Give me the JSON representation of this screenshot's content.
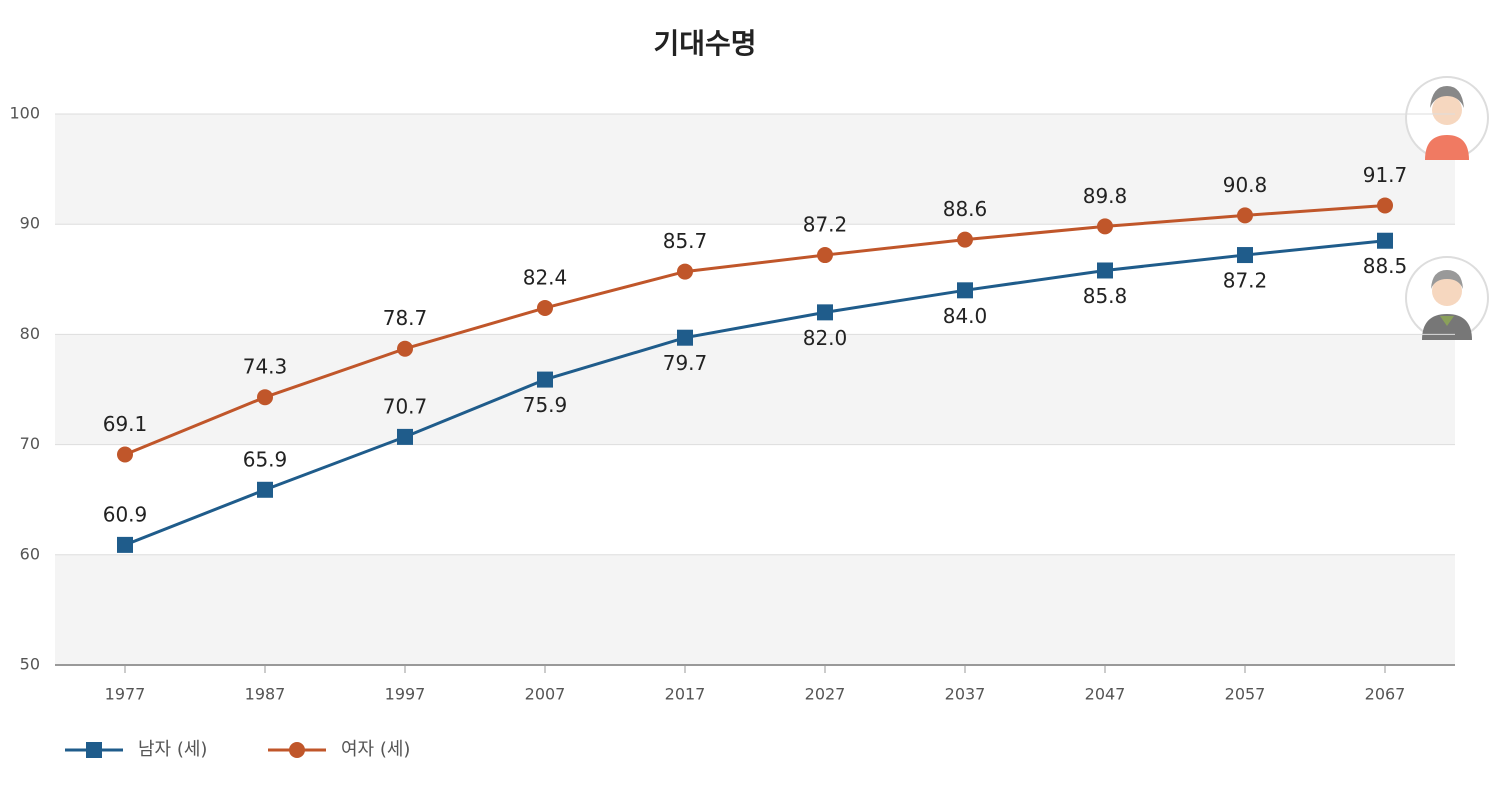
{
  "chart_data": {
    "type": "line",
    "title": "기대수명",
    "categories": [
      "1977",
      "1987",
      "1997",
      "2007",
      "2017",
      "2027",
      "2037",
      "2047",
      "2057",
      "2067"
    ],
    "series": [
      {
        "name": "남자 (세)",
        "color": "#1f5c8b",
        "marker": "square",
        "values": [
          60.9,
          65.9,
          70.7,
          75.9,
          79.7,
          82.0,
          84.0,
          85.8,
          87.2,
          88.5
        ],
        "value_labels": [
          "60.9",
          "65.9",
          "70.7",
          "75.9",
          "79.7",
          "82.0",
          "84.0",
          "85.8",
          "87.2",
          "88.5"
        ]
      },
      {
        "name": "여자 (세)",
        "color": "#c0562a",
        "marker": "circle",
        "values": [
          69.1,
          74.3,
          78.7,
          82.4,
          85.7,
          87.2,
          88.6,
          89.8,
          90.8,
          91.7
        ],
        "value_labels": [
          "69.1",
          "74.3",
          "78.7",
          "82.4",
          "85.7",
          "87.2",
          "88.6",
          "89.8",
          "90.8",
          "91.7"
        ]
      }
    ],
    "ylim": [
      50,
      100
    ],
    "yticks": [
      50,
      60,
      70,
      80,
      90,
      100
    ],
    "grid": true
  }
}
